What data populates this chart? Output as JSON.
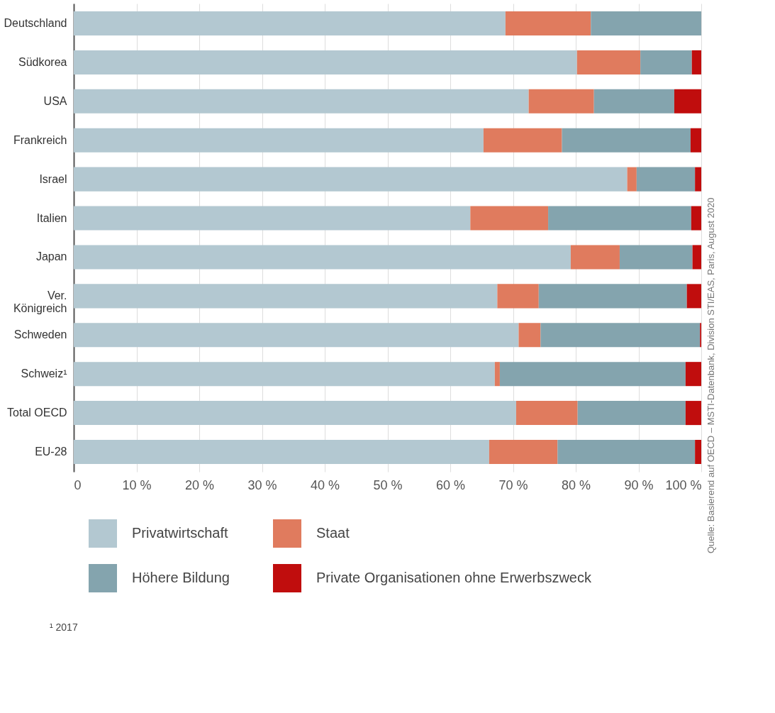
{
  "chart_data": {
    "type": "bar",
    "orientation": "horizontal",
    "stacked": true,
    "categories": [
      "Deutschland",
      "Südkorea",
      "USA",
      "Frankreich",
      "Israel",
      "Italien",
      "Japan",
      "Ver. Königreich",
      "Schweden",
      "Schweiz¹",
      "Total OECD",
      "EU-28"
    ],
    "series": [
      {
        "name": "Privatwirtschaft",
        "color": "#b3c8d1",
        "values": [
          68.8,
          80.2,
          72.5,
          65.3,
          88.2,
          63.2,
          79.2,
          67.5,
          70.9,
          67.1,
          70.5,
          66.2
        ]
      },
      {
        "name": "Staat",
        "color": "#e07b5e",
        "values": [
          13.6,
          10.1,
          10.4,
          12.5,
          1.5,
          12.4,
          7.8,
          6.6,
          3.5,
          0.8,
          9.8,
          10.9
        ]
      },
      {
        "name": "Höhere Bildung",
        "color": "#84a4ae",
        "values": [
          17.6,
          8.2,
          12.8,
          20.5,
          9.3,
          22.8,
          11.6,
          23.6,
          25.4,
          29.6,
          17.2,
          21.9
        ]
      },
      {
        "name": "Private Organisationen ohne Erwerbszweck",
        "color": "#c00d0d",
        "values": [
          0,
          1.5,
          4.3,
          1.7,
          1.0,
          1.6,
          1.4,
          2.3,
          0.2,
          2.5,
          2.5,
          1.0
        ]
      }
    ],
    "xlim": [
      0,
      100
    ],
    "xticks": [
      0,
      {
        "value": 10,
        "label": "10 %"
      },
      {
        "value": 20,
        "label": "20 %"
      },
      {
        "value": 30,
        "label": "30 %"
      },
      {
        "value": 40,
        "label": "40 %"
      },
      {
        "value": 50,
        "label": "50 %"
      },
      {
        "value": 60,
        "label": "60 %"
      },
      {
        "value": 70,
        "label": "70 %"
      },
      {
        "value": 80,
        "label": "80 %"
      },
      {
        "value": 90,
        "label": "90 %"
      },
      {
        "value": 100,
        "label": "100 %"
      }
    ],
    "grid": "x",
    "legend": "bottom",
    "annotations": [
      "Quelle: Basierend auf OECD – MSTI-Datenbank, Division STI/EAS, Paris, August 2020",
      "¹ 2017"
    ]
  }
}
